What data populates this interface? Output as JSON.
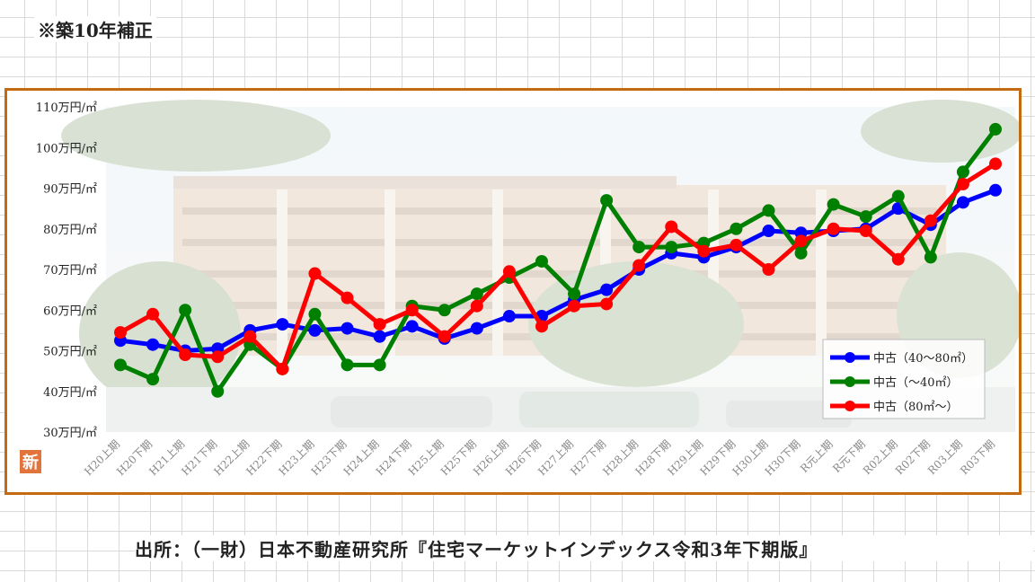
{
  "note": "※築10年補正",
  "source": "出所：（一財）日本不動産研究所『住宅マーケットインデックス令和3年下期版』",
  "badge": "新",
  "colors": {
    "frame": "#c46a11",
    "badge": "#e2733a"
  },
  "chart_data": {
    "type": "line",
    "categories": [
      "H20上期",
      "H20下期",
      "H21上期",
      "H21下期",
      "H22上期",
      "H22下期",
      "H23上期",
      "H23下期",
      "H24上期",
      "H24下期",
      "H25上期",
      "H25下期",
      "H26上期",
      "H26下期",
      "H27上期",
      "H27下期",
      "H28上期",
      "H28下期",
      "H29上期",
      "H29下期",
      "H30上期",
      "H30下期",
      "R元上期",
      "R元下期",
      "R02上期",
      "R02下期",
      "R03上期",
      "R03下期"
    ],
    "yticks": [
      "30万円/㎡",
      "40万円/㎡",
      "50万円/㎡",
      "60万円/㎡",
      "70万円/㎡",
      "80万円/㎡",
      "90万円/㎡",
      "100万円/㎡",
      "110万円/㎡"
    ],
    "ylim": [
      30,
      110
    ],
    "series": [
      {
        "name": "中古（40～80㎡）",
        "color": "#0000ff",
        "values": [
          52.5,
          51.5,
          50,
          50.5,
          55,
          56.5,
          55,
          55.5,
          53.5,
          56,
          53,
          55.5,
          58.5,
          58.5,
          62.5,
          65,
          70,
          74,
          73,
          75.5,
          79.5,
          79,
          79.5,
          80,
          85,
          81,
          86.5,
          89.5
        ]
      },
      {
        "name": "中古（～40㎡）",
        "color": "#008000",
        "values": [
          46.5,
          43,
          60,
          40,
          51.5,
          45.5,
          59,
          46.5,
          46.5,
          61,
          60,
          64,
          68,
          72,
          64,
          87,
          75.5,
          75.5,
          76.5,
          80,
          84.5,
          74,
          86,
          83,
          88,
          73,
          94,
          104.5
        ]
      },
      {
        "name": "中古（80㎡～）",
        "color": "#ff0000",
        "values": [
          54.5,
          59,
          49,
          48.5,
          53.5,
          45.5,
          69,
          63,
          56.5,
          60,
          53.5,
          61,
          69.5,
          56,
          61,
          61.5,
          71,
          80.5,
          74.5,
          76,
          70,
          77,
          80,
          79.5,
          72.5,
          82,
          91,
          96
        ]
      }
    ],
    "legend_position": "bottom-right",
    "grid": false
  }
}
